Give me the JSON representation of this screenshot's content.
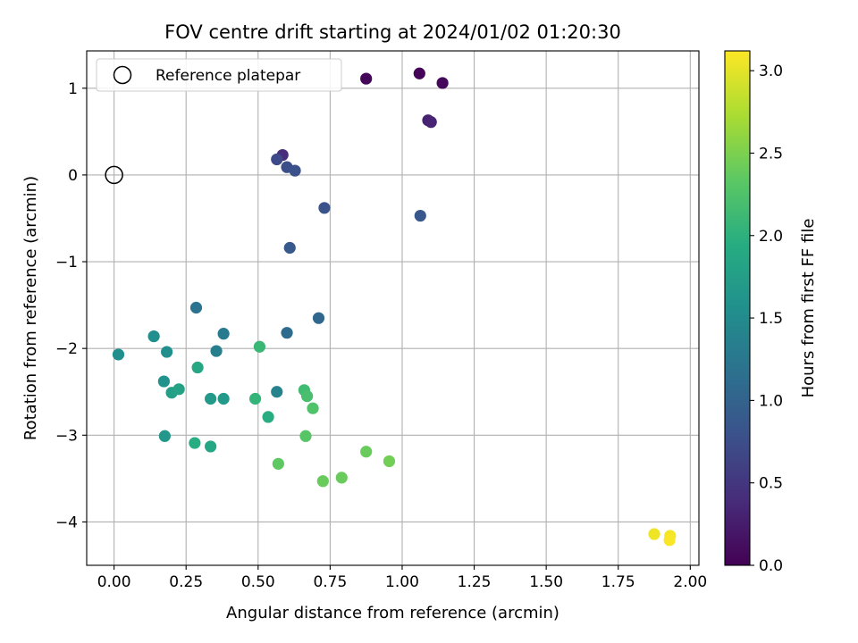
{
  "chart_data": {
    "type": "scatter",
    "title": "FOV centre drift starting at 2024/01/02 01:20:30",
    "xlabel": "Angular distance from reference (arcmin)",
    "ylabel": "Rotation from reference (arcmin)",
    "xlim": [
      -0.095,
      2.03
    ],
    "ylim": [
      -4.5,
      1.43
    ],
    "xticks": [
      0.0,
      0.25,
      0.5,
      0.75,
      1.0,
      1.25,
      1.5,
      1.75,
      2.0
    ],
    "xtick_labels": [
      "0.00",
      "0.25",
      "0.50",
      "0.75",
      "1.00",
      "1.25",
      "1.50",
      "1.75",
      "2.00"
    ],
    "yticks": [
      1,
      0,
      -1,
      -2,
      -3,
      -4
    ],
    "ytick_labels": [
      "1",
      "0",
      "−1",
      "−2",
      "−3",
      "−4"
    ],
    "grid": true,
    "legend": {
      "position": "upper-left",
      "entries": [
        "Reference platepar"
      ]
    },
    "reference_point": {
      "x": 0.0,
      "y": 0.0,
      "marker": "open-circle"
    },
    "colorbar": {
      "label": "Hours from first FF file",
      "colormap": "viridis",
      "range": [
        0.0,
        3.12
      ],
      "ticks": [
        0.0,
        0.5,
        1.0,
        1.5,
        2.0,
        2.5,
        3.0
      ],
      "tick_labels": [
        "0.0",
        "0.5",
        "1.0",
        "1.5",
        "2.0",
        "2.5",
        "3.0"
      ]
    },
    "points": [
      {
        "x": 0.875,
        "y": 1.11,
        "c": 0.05
      },
      {
        "x": 1.06,
        "y": 1.17,
        "c": 0.03
      },
      {
        "x": 1.14,
        "y": 1.06,
        "c": 0.07
      },
      {
        "x": 1.09,
        "y": 0.63,
        "c": 0.3
      },
      {
        "x": 1.1,
        "y": 0.61,
        "c": 0.33
      },
      {
        "x": 0.585,
        "y": 0.23,
        "c": 0.4
      },
      {
        "x": 0.565,
        "y": 0.18,
        "c": 0.7
      },
      {
        "x": 0.6,
        "y": 0.09,
        "c": 0.75
      },
      {
        "x": 0.628,
        "y": 0.05,
        "c": 0.78
      },
      {
        "x": 0.73,
        "y": -0.38,
        "c": 0.8
      },
      {
        "x": 1.063,
        "y": -0.47,
        "c": 0.85
      },
      {
        "x": 0.61,
        "y": -0.84,
        "c": 0.88
      },
      {
        "x": 0.71,
        "y": -1.65,
        "c": 1.05
      },
      {
        "x": 0.285,
        "y": -1.53,
        "c": 1.2
      },
      {
        "x": 0.6,
        "y": -1.82,
        "c": 1.1
      },
      {
        "x": 0.38,
        "y": -1.83,
        "c": 1.3
      },
      {
        "x": 0.355,
        "y": -2.03,
        "c": 1.35
      },
      {
        "x": 0.565,
        "y": -2.5,
        "c": 1.4
      },
      {
        "x": 0.015,
        "y": -2.07,
        "c": 1.55
      },
      {
        "x": 0.138,
        "y": -1.86,
        "c": 1.55
      },
      {
        "x": 0.183,
        "y": -2.04,
        "c": 1.55
      },
      {
        "x": 0.173,
        "y": -2.38,
        "c": 1.6
      },
      {
        "x": 0.335,
        "y": -2.58,
        "c": 1.7
      },
      {
        "x": 0.38,
        "y": -2.58,
        "c": 1.7
      },
      {
        "x": 0.176,
        "y": -3.01,
        "c": 1.65
      },
      {
        "x": 0.2,
        "y": -2.51,
        "c": 1.75
      },
      {
        "x": 0.225,
        "y": -2.47,
        "c": 1.8
      },
      {
        "x": 0.29,
        "y": -2.22,
        "c": 1.85
      },
      {
        "x": 0.335,
        "y": -3.13,
        "c": 1.85
      },
      {
        "x": 0.28,
        "y": -3.09,
        "c": 1.95
      },
      {
        "x": 0.535,
        "y": -2.79,
        "c": 1.95
      },
      {
        "x": 0.49,
        "y": -2.58,
        "c": 2.05
      },
      {
        "x": 0.505,
        "y": -1.98,
        "c": 2.1
      },
      {
        "x": 0.66,
        "y": -2.48,
        "c": 2.15
      },
      {
        "x": 0.67,
        "y": -2.55,
        "c": 2.2
      },
      {
        "x": 0.69,
        "y": -2.69,
        "c": 2.25
      },
      {
        "x": 0.665,
        "y": -3.01,
        "c": 2.3
      },
      {
        "x": 0.57,
        "y": -3.33,
        "c": 2.35
      },
      {
        "x": 0.725,
        "y": -3.53,
        "c": 2.4
      },
      {
        "x": 0.79,
        "y": -3.49,
        "c": 2.4
      },
      {
        "x": 0.875,
        "y": -3.19,
        "c": 2.4
      },
      {
        "x": 0.955,
        "y": -3.3,
        "c": 2.45
      },
      {
        "x": 1.875,
        "y": -4.14,
        "c": 3.05
      },
      {
        "x": 1.93,
        "y": -4.16,
        "c": 3.08
      },
      {
        "x": 1.928,
        "y": -4.21,
        "c": 3.1
      }
    ]
  }
}
